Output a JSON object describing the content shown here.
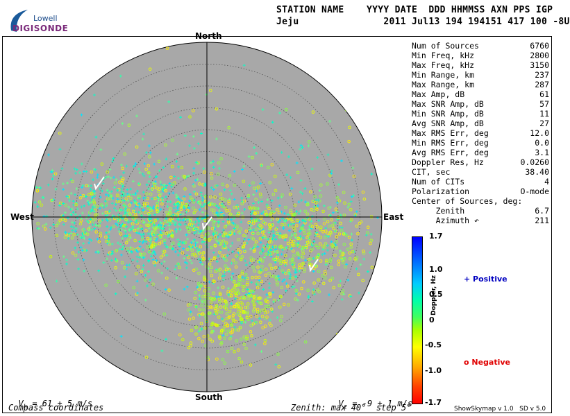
{
  "logo": {
    "line1": "Lowell",
    "line2": "DIGISONDE"
  },
  "header": {
    "labels": "STATION NAME    YYYY DATE  DDD HHMMSS AXN PPS IGP",
    "values": "Jeju               2011 Jul13 194 194151 417 100 -8U"
  },
  "compass": {
    "north": "North",
    "south": "South",
    "east": "East",
    "west": "West"
  },
  "stats": [
    {
      "label": "Num of Sources",
      "value": "6760"
    },
    {
      "label": "Min Freq, kHz",
      "value": "2800"
    },
    {
      "label": "Max Freq, kHz",
      "value": "3150"
    },
    {
      "label": "Min Range, km",
      "value": "237"
    },
    {
      "label": "Max Range, km",
      "value": "287"
    },
    {
      "label": "Max Amp, dB",
      "value": "61"
    },
    {
      "label": "Max SNR Amp, dB",
      "value": "57"
    },
    {
      "label": "Min SNR Amp, dB",
      "value": "11"
    },
    {
      "label": "Avg SNR Amp, dB",
      "value": "27"
    },
    {
      "label": "Max RMS Err, deg",
      "value": "12.0"
    },
    {
      "label": "Min RMS Err, deg",
      "value": "0.0"
    },
    {
      "label": "Avg RMS Err, deg",
      "value": "3.1"
    },
    {
      "label": "Doppler Res, Hz",
      "value": "0.0260"
    },
    {
      "label": "CIT, sec",
      "value": "38.40"
    },
    {
      "label": "Num of CITs",
      "value": "4"
    },
    {
      "label": "Polarization",
      "value": "O-mode"
    },
    {
      "label": "Center of Sources, deg:",
      "value": ""
    },
    {
      "label": "     Zenith",
      "value": "6.7"
    },
    {
      "label": "     Azimuth ↶",
      "value": "211"
    }
  ],
  "colorbar": {
    "title": "Doppler, Hz",
    "ticks": [
      "1.7",
      "1.0",
      "0.5",
      "0",
      "-0.5",
      "-1.0",
      "-1.7"
    ]
  },
  "legend": {
    "positive": "+ Positive",
    "negative": "o Negative",
    "positive_color": "#0000c0",
    "negative_color": "#e00000"
  },
  "velocity": {
    "vh_prefix": "V",
    "vh_sub": "h",
    "vh_value": " = 61 ± 5 m/s",
    "vz_prefix": "V",
    "vz_sub": "z",
    "vz_value": " = -9 ± 1 m/s"
  },
  "bottom": {
    "coords": "Compass coordinates",
    "zenith": "Zenith: max 40°  step 5°"
  },
  "footer": {
    "version": "ShowSkymap v 1.0   SD v 5.0"
  },
  "colors": {
    "plot_bg": "#a8a8a8",
    "logo_blue": "#1a4a8a",
    "logo_purple": "#7a2a7a"
  }
}
